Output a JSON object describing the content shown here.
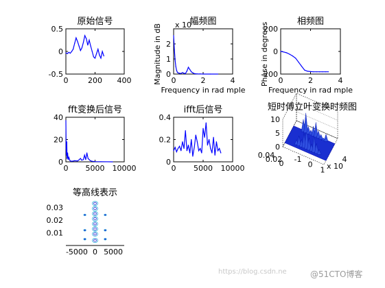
{
  "watermark": {
    "url": "https://blog.csdn.ne",
    "brand": "@51CTO博客"
  },
  "chart_data": [
    {
      "id": "orig",
      "type": "line",
      "title": "原始信号",
      "xlabel": "",
      "ylabel": "",
      "xlim": [
        0,
        400
      ],
      "ylim": [
        -0.5,
        0.5
      ],
      "xticks": [
        0,
        200,
        400
      ],
      "yticks": [
        -0.5,
        0,
        0.5
      ],
      "color": "#0000ff",
      "series": [
        {
          "x": [
            0,
            10,
            20,
            30,
            40,
            50,
            60,
            70,
            80,
            90,
            100,
            110,
            120,
            130,
            140,
            150,
            160,
            170,
            180,
            190,
            200,
            210,
            220,
            230,
            240,
            250,
            260
          ],
          "y": [
            -0.03,
            -0.05,
            -0.02,
            -0.04,
            0.0,
            0.05,
            0.18,
            0.3,
            0.22,
            0.12,
            0.02,
            0.08,
            0.2,
            0.35,
            0.28,
            0.14,
            0.25,
            0.12,
            0.0,
            -0.12,
            -0.15,
            -0.05,
            0.05,
            -0.08,
            -0.15,
            0.0,
            -0.1
          ]
        }
      ]
    },
    {
      "id": "amp",
      "type": "line",
      "title": "幅频图",
      "xlabel": "Frequency in rad mple",
      "ylabel": "Magnitude in dB",
      "xlim": [
        0,
        4
      ],
      "ylim": [
        0,
        3
      ],
      "xticks": [
        0,
        2,
        4
      ],
      "yticks": [
        0,
        1,
        2
      ],
      "exponent": "x 10",
      "color": "#0000ff",
      "series": [
        {
          "x": [
            0,
            0.05,
            0.1,
            0.15,
            0.2,
            0.25,
            0.3,
            0.4,
            0.5,
            0.6,
            0.7,
            0.8,
            0.9,
            1.0,
            1.1,
            1.2,
            1.3,
            1.4,
            1.5,
            1.6,
            1.8,
            2.0,
            2.5,
            3.0
          ],
          "y": [
            2.55,
            1.6,
            0.9,
            0.5,
            0.25,
            0.12,
            0.08,
            0.05,
            0.04,
            0.1,
            0.05,
            0.03,
            0.2,
            0.45,
            0.3,
            0.15,
            0.08,
            0.03,
            0.02,
            0.01,
            0.01,
            0.0,
            0.0,
            0.0
          ]
        }
      ]
    },
    {
      "id": "phase",
      "type": "line",
      "title": "相频图",
      "xlabel": "Frequency in rad mple",
      "ylabel": "Phase in degrees",
      "xlim": [
        0,
        4
      ],
      "ylim": [
        -200,
        200
      ],
      "xticks": [
        0,
        2,
        4
      ],
      "yticks": [
        -200,
        0,
        200
      ],
      "color": "#0000ff",
      "series": [
        {
          "x": [
            0,
            0.2,
            0.4,
            0.6,
            0.8,
            1.0,
            1.2,
            1.4,
            1.6,
            1.8,
            2.0,
            2.2,
            2.4,
            2.6,
            2.8,
            3.0,
            3.2
          ],
          "y": [
            0,
            -5,
            -12,
            -25,
            -40,
            -60,
            -95,
            -130,
            -165,
            -175,
            -178,
            -180,
            -180,
            -180,
            -180,
            -180,
            -180
          ]
        }
      ]
    },
    {
      "id": "fft",
      "type": "line",
      "title": "fft变换后信号",
      "xlabel": "",
      "ylabel": "",
      "xlim": [
        0,
        10000
      ],
      "ylim": [
        0,
        40
      ],
      "xticks": [
        0,
        5000,
        10000
      ],
      "yticks": [
        0,
        20,
        40
      ],
      "color": "#0000ff",
      "series": [
        {
          "x": [
            0,
            50,
            100,
            150,
            200,
            300,
            400,
            500,
            700,
            1000,
            1500,
            2000,
            2300,
            2500,
            2700,
            3000,
            3200,
            3400,
            3600,
            3800,
            4000,
            4200,
            4500,
            5000,
            6000,
            8000
          ],
          "y": [
            37,
            12,
            6,
            18,
            3,
            8,
            2,
            4,
            1,
            0.5,
            1,
            0.8,
            2,
            3,
            1.5,
            2,
            6,
            2,
            8,
            3,
            2,
            1,
            0.5,
            0.2,
            0.1,
            0.0
          ]
        }
      ]
    },
    {
      "id": "ifft",
      "type": "line",
      "title": "ifft后信号",
      "xlabel": "",
      "ylabel": "",
      "xlim": [
        0,
        10000
      ],
      "ylim": [
        0,
        0.4
      ],
      "xticks": [
        0,
        5000,
        10000
      ],
      "yticks": [
        0,
        0.2,
        0.4
      ],
      "color": "#0000ff",
      "series": [
        {
          "x": [
            0,
            250,
            500,
            750,
            1000,
            1250,
            1500,
            1750,
            2000,
            2250,
            2500,
            2750,
            3000,
            3250,
            3500,
            3750,
            4000,
            4250,
            4500,
            4750,
            5000,
            5250,
            5500,
            5750,
            6000,
            6250,
            6500,
            6750,
            7000,
            7250,
            7500,
            7750,
            8000
          ],
          "y": [
            0.1,
            0.13,
            0.09,
            0.12,
            0.14,
            0.1,
            0.18,
            0.12,
            0.28,
            0.1,
            0.15,
            0.08,
            0.2,
            0.05,
            0.13,
            0.24,
            0.18,
            0.1,
            0.12,
            0.08,
            0.3,
            0.22,
            0.35,
            0.15,
            0.2,
            0.12,
            0.08,
            0.22,
            0.06,
            0.18,
            0.1,
            0.12,
            0.08
          ]
        }
      ]
    },
    {
      "id": "stft",
      "type": "surface",
      "title": "短时傅立叶变换时频图",
      "zticks": [
        0,
        5,
        10
      ],
      "yticks": [
        0.04,
        0.02,
        0
      ],
      "xticks": [
        -1,
        0,
        1
      ],
      "xexponent": "x 10",
      "xexponent_power": "4",
      "color": "#0000ff",
      "peaks": [
        2,
        4,
        3,
        6,
        9,
        5,
        3,
        7,
        4,
        2,
        5,
        8,
        3,
        2,
        4,
        6,
        3,
        2,
        1,
        3
      ]
    },
    {
      "id": "contour",
      "type": "contour",
      "title": "等高线表示",
      "xlim": [
        -8000,
        8000
      ],
      "ylim": [
        0,
        0.035
      ],
      "xticks": [
        -5000,
        0,
        5000
      ],
      "yticks": [
        0.01,
        0.02,
        0.03
      ],
      "color": "#0000ff",
      "blobs": [
        {
          "x": 0,
          "y": 0.004
        },
        {
          "x": 0,
          "y": 0.009
        },
        {
          "x": 0,
          "y": 0.013
        },
        {
          "x": 0,
          "y": 0.017
        },
        {
          "x": 0,
          "y": 0.021
        },
        {
          "x": 0,
          "y": 0.025
        },
        {
          "x": 0,
          "y": 0.029
        },
        {
          "x": 0,
          "y": 0.033
        },
        {
          "x": -2800,
          "y": 0.012
        },
        {
          "x": -2800,
          "y": 0.024
        },
        {
          "x": 2800,
          "y": 0.012
        },
        {
          "x": 2800,
          "y": 0.024
        },
        {
          "x": -2800,
          "y": 0.005
        },
        {
          "x": 2800,
          "y": 0.005
        }
      ]
    }
  ]
}
